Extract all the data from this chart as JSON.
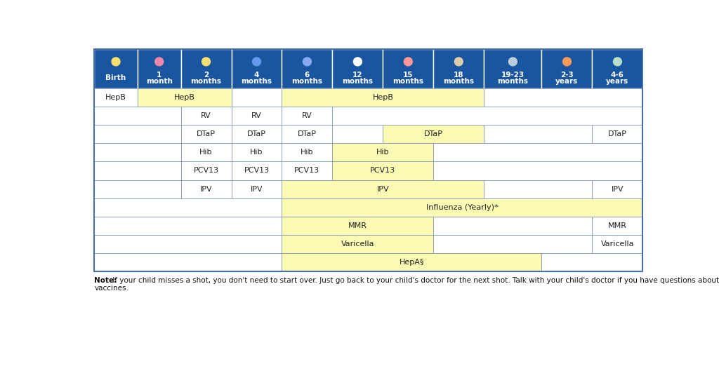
{
  "header_bg": "#1a56a0",
  "header_text_color": "#ffffff",
  "yellow_fill": "#fafab4",
  "white_fill": "#ffffff",
  "border_color": "#5577aa",
  "note_bold": "Note:",
  "note_rest": " If your child misses a shot, you don't need to start over. Just go back to your child's doctor for the next shot. Talk with your child's doctor if you have questions about",
  "note_line2": "vaccines.",
  "col_labels": [
    "Birth",
    "1\nmonth",
    "2\nmonths",
    "4\nmonths",
    "6\nmonths",
    "12\nmonths",
    "15\nmonths",
    "18\nmonths",
    "19-23\nmonths",
    "2-3\nyears",
    "4-6\nyears"
  ],
  "col_widths_rel": [
    6.0,
    6.0,
    7.0,
    7.0,
    7.0,
    7.0,
    7.0,
    7.0,
    8.0,
    7.0,
    7.0
  ],
  "vaccines": [
    {
      "name": "HepB",
      "row": 0,
      "cells": [
        {
          "cols": [
            0
          ],
          "fill": "white",
          "text": "HepB"
        },
        {
          "cols": [
            1,
            2
          ],
          "fill": "yellow",
          "text": "HepB"
        },
        {
          "cols": [
            3
          ],
          "fill": "white",
          "text": ""
        },
        {
          "cols": [
            4,
            5,
            6,
            7
          ],
          "fill": "yellow",
          "text": "HepB"
        },
        {
          "cols": [
            8,
            9,
            10
          ],
          "fill": "white",
          "text": ""
        }
      ]
    },
    {
      "name": "RV",
      "row": 1,
      "cells": [
        {
          "cols": [
            0,
            1
          ],
          "fill": "white",
          "text": ""
        },
        {
          "cols": [
            2
          ],
          "fill": "white",
          "text": "RV"
        },
        {
          "cols": [
            3
          ],
          "fill": "white",
          "text": "RV"
        },
        {
          "cols": [
            4
          ],
          "fill": "white",
          "text": "RV"
        },
        {
          "cols": [
            5,
            6,
            7,
            8,
            9,
            10
          ],
          "fill": "white",
          "text": ""
        }
      ]
    },
    {
      "name": "DTaP",
      "row": 2,
      "cells": [
        {
          "cols": [
            0,
            1
          ],
          "fill": "white",
          "text": ""
        },
        {
          "cols": [
            2
          ],
          "fill": "white",
          "text": "DTaP"
        },
        {
          "cols": [
            3
          ],
          "fill": "white",
          "text": "DTaP"
        },
        {
          "cols": [
            4
          ],
          "fill": "white",
          "text": "DTaP"
        },
        {
          "cols": [
            5
          ],
          "fill": "white",
          "text": ""
        },
        {
          "cols": [
            6,
            7
          ],
          "fill": "yellow",
          "text": "DTaP"
        },
        {
          "cols": [
            8,
            9
          ],
          "fill": "white",
          "text": ""
        },
        {
          "cols": [
            10
          ],
          "fill": "white",
          "text": "DTaP"
        }
      ]
    },
    {
      "name": "Hib",
      "row": 3,
      "cells": [
        {
          "cols": [
            0,
            1
          ],
          "fill": "white",
          "text": ""
        },
        {
          "cols": [
            2
          ],
          "fill": "white",
          "text": "Hib"
        },
        {
          "cols": [
            3
          ],
          "fill": "white",
          "text": "Hib"
        },
        {
          "cols": [
            4
          ],
          "fill": "white",
          "text": "Hib"
        },
        {
          "cols": [
            5,
            6
          ],
          "fill": "yellow",
          "text": "Hib"
        },
        {
          "cols": [
            7,
            8,
            9,
            10
          ],
          "fill": "white",
          "text": ""
        }
      ]
    },
    {
      "name": "PCV13",
      "row": 4,
      "cells": [
        {
          "cols": [
            0,
            1
          ],
          "fill": "white",
          "text": ""
        },
        {
          "cols": [
            2
          ],
          "fill": "white",
          "text": "PCV13"
        },
        {
          "cols": [
            3
          ],
          "fill": "white",
          "text": "PCV13"
        },
        {
          "cols": [
            4
          ],
          "fill": "white",
          "text": "PCV13"
        },
        {
          "cols": [
            5,
            6
          ],
          "fill": "yellow",
          "text": "PCV13"
        },
        {
          "cols": [
            7,
            8,
            9,
            10
          ],
          "fill": "white",
          "text": ""
        }
      ]
    },
    {
      "name": "IPV",
      "row": 5,
      "cells": [
        {
          "cols": [
            0,
            1
          ],
          "fill": "white",
          "text": ""
        },
        {
          "cols": [
            2
          ],
          "fill": "white",
          "text": "IPV"
        },
        {
          "cols": [
            3
          ],
          "fill": "white",
          "text": "IPV"
        },
        {
          "cols": [
            4,
            5,
            6,
            7
          ],
          "fill": "yellow",
          "text": "IPV"
        },
        {
          "cols": [
            8,
            9
          ],
          "fill": "white",
          "text": ""
        },
        {
          "cols": [
            10
          ],
          "fill": "white",
          "text": "IPV"
        }
      ]
    },
    {
      "name": "Influenza",
      "row": 6,
      "cells": [
        {
          "cols": [
            0,
            1,
            2,
            3
          ],
          "fill": "white",
          "text": ""
        },
        {
          "cols": [
            4,
            5,
            6,
            7,
            8,
            9,
            10
          ],
          "fill": "yellow",
          "text": "Influenza (Yearly)*"
        }
      ]
    },
    {
      "name": "MMR",
      "row": 7,
      "cells": [
        {
          "cols": [
            0,
            1,
            2,
            3
          ],
          "fill": "white",
          "text": ""
        },
        {
          "cols": [
            4,
            5,
            6
          ],
          "fill": "yellow",
          "text": "MMR"
        },
        {
          "cols": [
            7,
            8,
            9
          ],
          "fill": "white",
          "text": ""
        },
        {
          "cols": [
            10
          ],
          "fill": "white",
          "text": "MMR"
        }
      ]
    },
    {
      "name": "Varicella",
      "row": 8,
      "cells": [
        {
          "cols": [
            0,
            1,
            2,
            3
          ],
          "fill": "white",
          "text": ""
        },
        {
          "cols": [
            4,
            5,
            6
          ],
          "fill": "yellow",
          "text": "Varicella"
        },
        {
          "cols": [
            7,
            8,
            9
          ],
          "fill": "white",
          "text": ""
        },
        {
          "cols": [
            10
          ],
          "fill": "white",
          "text": "Varicella"
        }
      ]
    },
    {
      "name": "HepA",
      "row": 9,
      "cells": [
        {
          "cols": [
            0,
            1,
            2,
            3
          ],
          "fill": "white",
          "text": ""
        },
        {
          "cols": [
            4,
            5,
            6,
            7,
            8
          ],
          "fill": "yellow",
          "text": "HepA§"
        },
        {
          "cols": [
            9,
            10
          ],
          "fill": "white",
          "text": ""
        }
      ]
    }
  ]
}
